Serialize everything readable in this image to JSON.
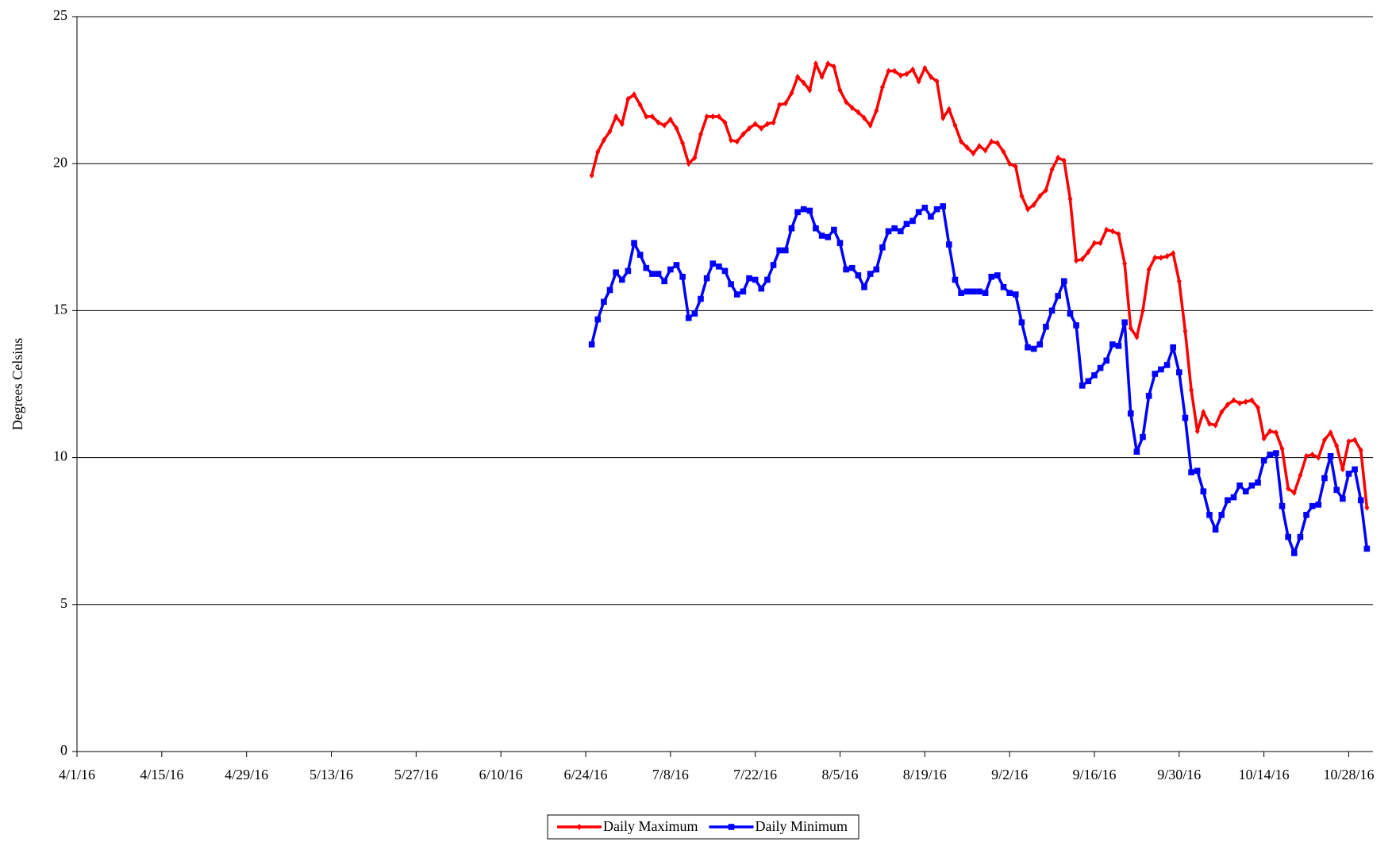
{
  "chart_data": {
    "type": "line",
    "ylabel": "Degrees Celsius",
    "x": [
      "6/25/16",
      "6/26/16",
      "6/27/16",
      "6/28/16",
      "6/29/16",
      "6/30/16",
      "7/1/16",
      "7/2/16",
      "7/3/16",
      "7/4/16",
      "7/5/16",
      "7/6/16",
      "7/7/16",
      "7/8/16",
      "7/9/16",
      "7/10/16",
      "7/11/16",
      "7/12/16",
      "7/13/16",
      "7/14/16",
      "7/15/16",
      "7/16/16",
      "7/17/16",
      "7/18/16",
      "7/19/16",
      "7/20/16",
      "7/21/16",
      "7/22/16",
      "7/23/16",
      "7/24/16",
      "7/25/16",
      "7/26/16",
      "7/27/16",
      "7/28/16",
      "7/29/16",
      "7/30/16",
      "7/31/16",
      "8/1/16",
      "8/2/16",
      "8/3/16",
      "8/4/16",
      "8/5/16",
      "8/6/16",
      "8/7/16",
      "8/8/16",
      "8/9/16",
      "8/10/16",
      "8/11/16",
      "8/12/16",
      "8/13/16",
      "8/14/16",
      "8/15/16",
      "8/16/16",
      "8/17/16",
      "8/18/16",
      "8/19/16",
      "8/20/16",
      "8/21/16",
      "8/22/16",
      "8/23/16",
      "8/24/16",
      "8/25/16",
      "8/26/16",
      "8/27/16",
      "8/28/16",
      "8/29/16",
      "8/30/16",
      "8/31/16",
      "9/1/16",
      "9/2/16",
      "9/3/16",
      "9/4/16",
      "9/5/16",
      "9/6/16",
      "9/7/16",
      "9/8/16",
      "9/9/16",
      "9/10/16",
      "9/11/16",
      "9/12/16",
      "9/13/16",
      "9/14/16",
      "9/15/16",
      "9/16/16",
      "9/17/16",
      "9/18/16",
      "9/19/16",
      "9/20/16",
      "9/21/16",
      "9/22/16",
      "9/23/16",
      "9/24/16",
      "9/25/16",
      "9/26/16",
      "9/27/16",
      "9/28/16",
      "9/29/16",
      "9/30/16",
      "10/1/16",
      "10/2/16",
      "10/3/16",
      "10/4/16",
      "10/5/16",
      "10/6/16",
      "10/7/16",
      "10/8/16",
      "10/9/16",
      "10/10/16",
      "10/11/16",
      "10/12/16",
      "10/13/16",
      "10/14/16",
      "10/15/16",
      "10/16/16",
      "10/17/16",
      "10/18/16",
      "10/19/16",
      "10/20/16",
      "10/21/16",
      "10/22/16",
      "10/23/16",
      "10/24/16",
      "10/25/16",
      "10/26/16",
      "10/27/16",
      "10/28/16",
      "10/29/16",
      "10/30/16",
      "10/31/16"
    ],
    "series": [
      {
        "name": "Daily Maximum",
        "color": "#ff0000",
        "marker": "diamond",
        "values": [
          19.6,
          20.4,
          20.8,
          21.1,
          21.6,
          21.35,
          22.2,
          22.35,
          22.0,
          21.6,
          21.6,
          21.4,
          21.3,
          21.5,
          21.2,
          20.7,
          20.0,
          20.2,
          21.0,
          21.6,
          21.6,
          21.6,
          21.4,
          20.8,
          20.75,
          21.0,
          21.2,
          21.35,
          21.2,
          21.35,
          21.4,
          22.0,
          22.05,
          22.4,
          22.95,
          22.75,
          22.5,
          23.4,
          22.95,
          23.4,
          23.3,
          22.5,
          22.1,
          21.9,
          21.75,
          21.55,
          21.3,
          21.8,
          22.6,
          23.15,
          23.15,
          23.0,
          23.05,
          23.2,
          22.8,
          23.25,
          22.95,
          22.8,
          21.55,
          21.85,
          21.3,
          20.75,
          20.55,
          20.35,
          20.6,
          20.45,
          20.75,
          20.7,
          20.4,
          20.0,
          19.9,
          18.9,
          18.45,
          18.6,
          18.9,
          19.1,
          19.8,
          20.2,
          20.1,
          18.8,
          16.7,
          16.75,
          17.0,
          17.3,
          17.3,
          17.75,
          17.7,
          17.6,
          16.6,
          14.4,
          14.1,
          15.0,
          16.4,
          16.8,
          16.8,
          16.85,
          16.95,
          16.0,
          14.3,
          12.3,
          10.9,
          11.55,
          11.15,
          11.1,
          11.55,
          11.8,
          11.95,
          11.85,
          11.9,
          11.95,
          11.7,
          10.65,
          10.9,
          10.85,
          10.3,
          8.95,
          8.8,
          9.4,
          10.05,
          10.1,
          10.0,
          10.6,
          10.85,
          10.4,
          9.6,
          10.55,
          10.6,
          10.25,
          8.3
        ]
      },
      {
        "name": "Daily Minimum",
        "color": "#0000ff",
        "marker": "square",
        "values": [
          13.85,
          14.7,
          15.3,
          15.7,
          16.3,
          16.05,
          16.35,
          17.3,
          16.9,
          16.45,
          16.25,
          16.25,
          16.0,
          16.4,
          16.55,
          16.15,
          14.75,
          14.9,
          15.4,
          16.1,
          16.6,
          16.5,
          16.35,
          15.9,
          15.55,
          15.65,
          16.1,
          16.05,
          15.75,
          16.05,
          16.55,
          17.05,
          17.05,
          17.8,
          18.35,
          18.45,
          18.4,
          17.8,
          17.55,
          17.5,
          17.75,
          17.3,
          16.4,
          16.45,
          16.2,
          15.8,
          16.25,
          16.4,
          17.15,
          17.7,
          17.8,
          17.7,
          17.95,
          18.05,
          18.35,
          18.5,
          18.2,
          18.45,
          18.55,
          17.25,
          16.05,
          15.6,
          15.65,
          15.65,
          15.65,
          15.6,
          16.15,
          16.2,
          15.8,
          15.6,
          15.55,
          14.6,
          13.75,
          13.7,
          13.85,
          14.45,
          15.0,
          15.5,
          16.0,
          14.9,
          14.5,
          12.45,
          12.6,
          12.8,
          13.05,
          13.3,
          13.85,
          13.8,
          14.6,
          11.5,
          10.2,
          10.7,
          12.1,
          12.85,
          13.0,
          13.15,
          13.75,
          12.9,
          11.35,
          9.5,
          9.55,
          8.85,
          8.05,
          7.55,
          8.05,
          8.55,
          8.65,
          9.05,
          8.85,
          9.05,
          9.15,
          9.9,
          10.1,
          10.15,
          8.35,
          7.3,
          6.75,
          7.3,
          8.05,
          8.35,
          8.4,
          9.3,
          10.05,
          8.9,
          8.6,
          9.45,
          9.6,
          8.55,
          6.9
        ]
      }
    ],
    "xlim": [
      "4/1/16",
      "11/1/16"
    ],
    "xticks": [
      "4/1/16",
      "4/15/16",
      "4/29/16",
      "5/13/16",
      "5/27/16",
      "6/10/16",
      "6/24/16",
      "7/8/16",
      "7/22/16",
      "8/5/16",
      "8/19/16",
      "9/2/16",
      "9/16/16",
      "9/30/16",
      "10/14/16",
      "10/28/16"
    ],
    "ylim": [
      0,
      25
    ],
    "yticks": [
      0,
      5,
      10,
      15,
      20,
      25
    ],
    "grid": true,
    "legend": "bottom"
  }
}
